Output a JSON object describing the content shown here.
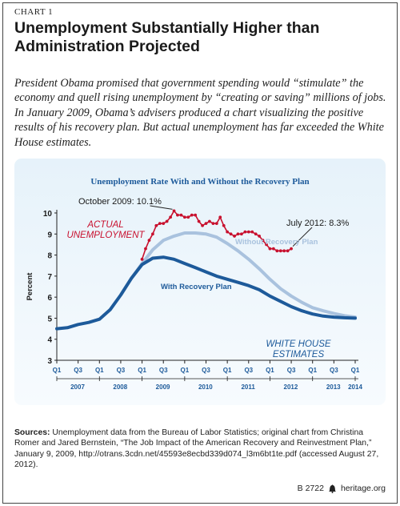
{
  "header": {
    "label": "CHART 1",
    "title": "Unemployment Substantially Higher than Administration Projected",
    "intro": "President Obama promised that government spending would “stimulate” the economy and quell rising unemployment by “creating or saving” millions of jobs. In January 2009, Obama’s advisers produced a chart visualizing the positive results of his recovery plan. But actual unemployment has far exceeded the White House estimates."
  },
  "colors": {
    "actual": "#c8102e",
    "with_plan": "#1d5a9a",
    "without_plan": "#a9c2de",
    "panel_title": "#1d5a9a"
  },
  "chart_data": {
    "type": "line",
    "title": "Unemployment Rate With and Without the Recovery Plan",
    "ylabel": "Percent",
    "ylim": [
      3,
      10
    ],
    "yticks": [
      3,
      4,
      5,
      6,
      7,
      8,
      9,
      10
    ],
    "xlim": [
      2007.0,
      2014.0
    ],
    "quarter_ticks": [
      "Q1",
      "Q3",
      "Q1",
      "Q3",
      "Q1",
      "Q3",
      "Q1",
      "Q3",
      "Q1",
      "Q3",
      "Q1",
      "Q3",
      "Q1",
      "Q3",
      "Q1"
    ],
    "years": [
      "2007",
      "2008",
      "2009",
      "2010",
      "2011",
      "2012",
      "2013",
      "2014"
    ],
    "grid": false,
    "series": [
      {
        "name": "With Recovery Plan",
        "x": [
          2007.0,
          2007.25,
          2007.5,
          2007.75,
          2008.0,
          2008.25,
          2008.5,
          2008.75,
          2009.0,
          2009.25,
          2009.5,
          2009.75,
          2010.0,
          2010.25,
          2010.5,
          2010.75,
          2011.0,
          2011.25,
          2011.5,
          2011.75,
          2012.0,
          2012.25,
          2012.5,
          2012.75,
          2013.0,
          2013.25,
          2013.5,
          2013.75,
          2014.0
        ],
        "values": [
          4.5,
          4.55,
          4.7,
          4.8,
          4.95,
          5.4,
          6.1,
          6.9,
          7.55,
          7.85,
          7.9,
          7.8,
          7.6,
          7.4,
          7.2,
          7.0,
          6.85,
          6.7,
          6.55,
          6.35,
          6.05,
          5.8,
          5.55,
          5.35,
          5.2,
          5.1,
          5.05,
          5.02,
          5.0
        ]
      },
      {
        "name": "Without Recovery Plan",
        "x": [
          2008.75,
          2009.0,
          2009.25,
          2009.5,
          2009.75,
          2010.0,
          2010.25,
          2010.5,
          2010.75,
          2011.0,
          2011.25,
          2011.5,
          2011.75,
          2012.0,
          2012.25,
          2012.5,
          2012.75,
          2013.0,
          2013.25,
          2013.5,
          2013.75,
          2014.0
        ],
        "values": [
          6.9,
          7.6,
          8.25,
          8.7,
          8.9,
          9.05,
          9.05,
          9.0,
          8.85,
          8.55,
          8.2,
          7.8,
          7.35,
          6.85,
          6.4,
          6.05,
          5.75,
          5.5,
          5.35,
          5.22,
          5.12,
          5.05
        ]
      },
      {
        "name": "Actual Unemployment",
        "x": [
          2009.0,
          2009.083,
          2009.167,
          2009.25,
          2009.333,
          2009.417,
          2009.5,
          2009.583,
          2009.667,
          2009.75,
          2009.833,
          2009.917,
          2010.0,
          2010.083,
          2010.167,
          2010.25,
          2010.333,
          2010.417,
          2010.5,
          2010.583,
          2010.667,
          2010.75,
          2010.833,
          2010.917,
          2011.0,
          2011.083,
          2011.167,
          2011.25,
          2011.333,
          2011.417,
          2011.5,
          2011.583,
          2011.667,
          2011.75,
          2011.833,
          2011.917,
          2012.0,
          2012.083,
          2012.167,
          2012.25,
          2012.333,
          2012.417,
          2012.5
        ],
        "values": [
          7.8,
          8.3,
          8.7,
          9.0,
          9.4,
          9.5,
          9.5,
          9.6,
          9.8,
          10.1,
          9.9,
          9.9,
          9.8,
          9.8,
          9.9,
          9.9,
          9.6,
          9.4,
          9.5,
          9.6,
          9.5,
          9.5,
          9.8,
          9.4,
          9.1,
          9.0,
          8.9,
          9.0,
          9.0,
          9.1,
          9.1,
          9.1,
          9.0,
          8.9,
          8.7,
          8.5,
          8.3,
          8.3,
          8.2,
          8.2,
          8.2,
          8.2,
          8.3
        ]
      }
    ],
    "annotations": {
      "actual_line1": "ACTUAL",
      "actual_line2": "UNEMPLOYMENT",
      "peak": "October 2009: 10.1%",
      "latest": "July 2012: 8.3%",
      "with_plan": "With Recovery Plan",
      "without_plan": "Without Recovery Plan",
      "wh_line1": "WHITE HOUSE",
      "wh_line2": "ESTIMATES"
    }
  },
  "sources": {
    "label": "Sources:",
    "text": "Unemployment data from the Bureau of Labor Statistics; original chart from Christina Romer and Jared Bernstein, “The Job Impact of the American Recovery and Reinvestment Plan,” January 9, 2009, http://otrans.3cdn.net/45593e8ecbd339d074_l3m6bt1te.pdf (accessed August 27, 2012)."
  },
  "footer": {
    "code": "B 2722",
    "site": "heritage.org",
    "logo_icon": "liberty-bell-icon"
  }
}
